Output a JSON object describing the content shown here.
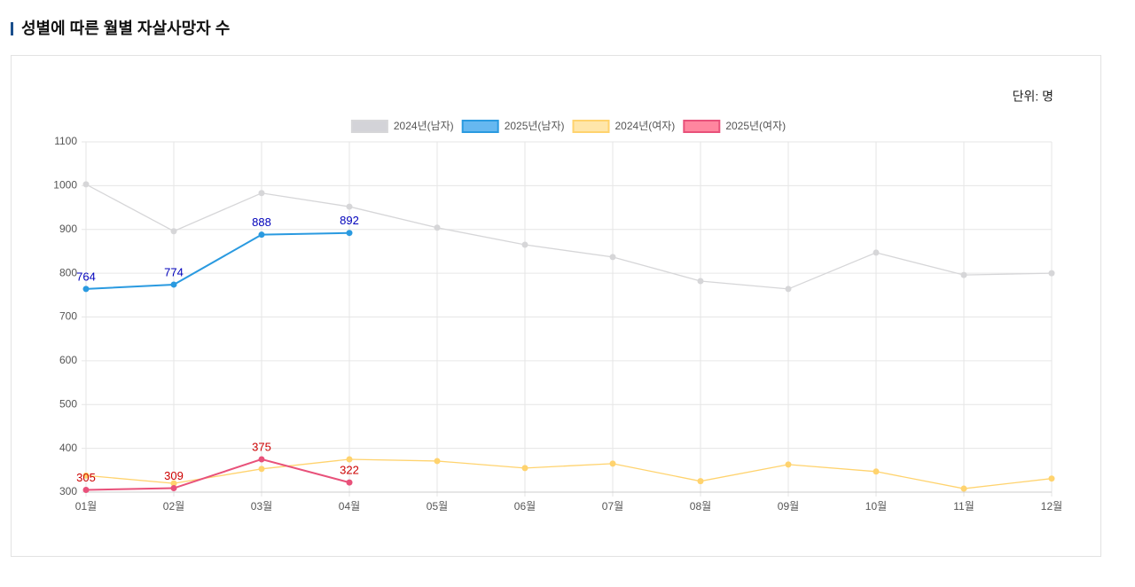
{
  "chart_data": {
    "type": "line",
    "title": "성별에 따른 월별 자살사망자 수",
    "unit_label": "단위: 명",
    "categories": [
      "01월",
      "02월",
      "03월",
      "04월",
      "05월",
      "06월",
      "07월",
      "08월",
      "09월",
      "10월",
      "11월",
      "12월"
    ],
    "series": [
      {
        "name": "2024년(남자)",
        "color": "#d6d6d8",
        "fill": "#d3d3d8",
        "values": [
          1003,
          896,
          983,
          952,
          904,
          865,
          837,
          782,
          764,
          847,
          796,
          800
        ],
        "data_labels": false
      },
      {
        "name": "2025년(남자)",
        "color": "#2a9ae0",
        "fill": "#66b8f0",
        "values": [
          764,
          774,
          888,
          892,
          null,
          null,
          null,
          null,
          null,
          null,
          null,
          null
        ],
        "data_labels": true,
        "label_color": "#0000bb"
      },
      {
        "name": "2024년(여자)",
        "color": "#ffd36e",
        "fill": "#ffe6aa",
        "values": [
          338,
          320,
          353,
          375,
          371,
          355,
          365,
          325,
          363,
          347,
          308,
          331
        ],
        "data_labels": false
      },
      {
        "name": "2025년(여자)",
        "color": "#e8517a",
        "fill": "#ff869f",
        "values": [
          305,
          309,
          375,
          322,
          null,
          null,
          null,
          null,
          null,
          null,
          null,
          null
        ],
        "data_labels": true,
        "label_color": "#cc0000"
      }
    ],
    "ylim": [
      300,
      1100
    ],
    "yticks": [
      300,
      400,
      500,
      600,
      700,
      800,
      900,
      1000,
      1100
    ],
    "grid": true,
    "legend": "top"
  }
}
